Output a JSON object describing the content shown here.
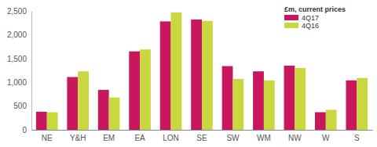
{
  "chart_data": {
    "type": "bar",
    "y_label": "£m, current prices",
    "categories": [
      "NE",
      "Y&H",
      "EM",
      "EA",
      "LON",
      "SE",
      "SW",
      "WM",
      "NW",
      "W",
      "S"
    ],
    "series": [
      {
        "name": "4Q17",
        "color": "#c8175d",
        "values": [
          380,
          1110,
          840,
          1650,
          2280,
          2320,
          1340,
          1230,
          1350,
          370,
          1040
        ]
      },
      {
        "name": "4Q16",
        "color": "#c9d841",
        "values": [
          370,
          1230,
          680,
          1690,
          2470,
          2290,
          1070,
          1040,
          1300,
          420,
          1090
        ]
      }
    ],
    "ylim": [
      0,
      2500
    ],
    "yticks": [
      0,
      500,
      {
        "value": 1000,
        "label": "1,000"
      },
      {
        "value": 1500,
        "label": "1,500"
      },
      {
        "value": 2000,
        "label": "2,000"
      },
      {
        "value": 2500,
        "label": "2,500"
      }
    ],
    "grid": false,
    "legend": "upper right"
  }
}
